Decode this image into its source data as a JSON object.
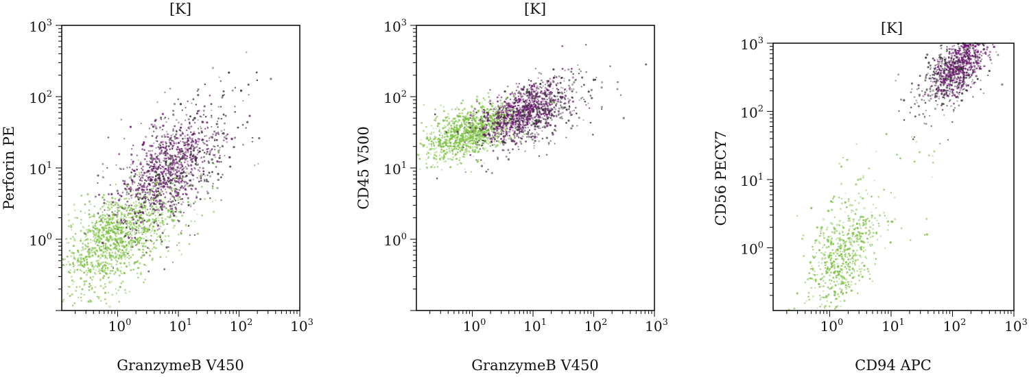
{
  "figure": {
    "panels": [
      {
        "title": "[K]",
        "xlabel": "GranzymeB V450",
        "ylabel": "Perforin PE",
        "xticks": [
          {
            "base": "10",
            "exp": "0"
          },
          {
            "base": "10",
            "exp": "1"
          },
          {
            "base": "10",
            "exp": "2"
          },
          {
            "base": "10",
            "exp": "3"
          }
        ],
        "yticks": [
          {
            "base": "10",
            "exp": "0"
          },
          {
            "base": "10",
            "exp": "1"
          },
          {
            "base": "10",
            "exp": "2"
          },
          {
            "base": "10",
            "exp": "3"
          }
        ]
      },
      {
        "title": "[K]",
        "xlabel": "GranzymeB V450",
        "ylabel": "CD45 V500",
        "xticks": [
          {
            "base": "10",
            "exp": "0"
          },
          {
            "base": "10",
            "exp": "1"
          },
          {
            "base": "10",
            "exp": "2"
          },
          {
            "base": "10",
            "exp": "3"
          }
        ],
        "yticks": [
          {
            "base": "10",
            "exp": "0"
          },
          {
            "base": "10",
            "exp": "1"
          },
          {
            "base": "10",
            "exp": "2"
          },
          {
            "base": "10",
            "exp": "3"
          }
        ]
      },
      {
        "title": "[K]",
        "xlabel": "CD94 APC",
        "ylabel": "CD56 PECY7",
        "xticks": [
          {
            "base": "10",
            "exp": "0"
          },
          {
            "base": "10",
            "exp": "1"
          },
          {
            "base": "10",
            "exp": "2"
          },
          {
            "base": "10",
            "exp": "3"
          }
        ],
        "yticks": [
          {
            "base": "10",
            "exp": "0"
          },
          {
            "base": "10",
            "exp": "1"
          },
          {
            "base": "10",
            "exp": "2"
          },
          {
            "base": "10",
            "exp": "3"
          }
        ]
      }
    ]
  },
  "chart_data": [
    {
      "type": "scatter",
      "title": "[K]",
      "xlabel": "GranzymeB V450",
      "ylabel": "Perforin PE",
      "xscale": "log",
      "yscale": "log",
      "xlim": [
        0.12,
        1000
      ],
      "ylim": [
        0.1,
        1000
      ],
      "grid": false,
      "colors": {
        "green": "#7cc142",
        "purple": "#6a1a6e",
        "dark": "#333333"
      },
      "series": [
        {
          "color": "green",
          "shape": "cloud",
          "center": [
            0.9,
            1.0
          ],
          "spread": [
            0.45,
            0.38
          ],
          "count": 1200
        },
        {
          "color": "purple",
          "shape": "cloud",
          "center": [
            6.5,
            9.0
          ],
          "spread": [
            0.38,
            0.38
          ],
          "count": 850
        },
        {
          "color": "dark",
          "shape": "cloud",
          "center": [
            10.0,
            10.0
          ],
          "spread": [
            0.55,
            0.55
          ],
          "count": 420
        },
        {
          "color": "green",
          "shape": "cloud",
          "center": [
            5.0,
            2.0
          ],
          "spread": [
            0.5,
            0.3
          ],
          "count": 100
        }
      ]
    },
    {
      "type": "scatter",
      "title": "[K]",
      "xlabel": "GranzymeB V450",
      "ylabel": "CD45 V500",
      "xscale": "log",
      "yscale": "log",
      "xlim": [
        0.12,
        1000
      ],
      "ylim": [
        0.1,
        1000
      ],
      "grid": false,
      "colors": {
        "green": "#7cc142",
        "purple": "#6a1a6e",
        "dark": "#333333"
      },
      "series": [
        {
          "color": "green",
          "shape": "cloud",
          "center": [
            0.9,
            32
          ],
          "spread": [
            0.38,
            0.2
          ],
          "count": 1100
        },
        {
          "color": "purple",
          "shape": "cloud",
          "center": [
            6.5,
            60
          ],
          "spread": [
            0.35,
            0.2
          ],
          "count": 850
        },
        {
          "color": "dark",
          "shape": "cloud",
          "center": [
            12.0,
            60
          ],
          "spread": [
            0.5,
            0.3
          ],
          "count": 400
        }
      ]
    },
    {
      "type": "scatter",
      "title": "[K]",
      "xlabel": "CD94 APC",
      "ylabel": "CD56 PECY7",
      "xscale": "log",
      "yscale": "log",
      "xlim": [
        0.12,
        1000
      ],
      "ylim": [
        0.12,
        1000
      ],
      "grid": false,
      "colors": {
        "green": "#7cc142",
        "purple": "#6a1a6e",
        "dark": "#333333"
      },
      "series": [
        {
          "color": "green",
          "shape": "cloud",
          "center": [
            1.5,
            0.7
          ],
          "spread": [
            0.3,
            0.45
          ],
          "count": 650
        },
        {
          "color": "purple",
          "shape": "cloud",
          "center": [
            130,
            480
          ],
          "spread": [
            0.22,
            0.22
          ],
          "count": 700
        },
        {
          "color": "dark",
          "shape": "cloud",
          "center": [
            80,
            300
          ],
          "spread": [
            0.32,
            0.32
          ],
          "count": 300
        },
        {
          "color": "green",
          "shape": "scatter",
          "center": [
            8,
            8
          ],
          "spread": [
            0.8,
            0.8
          ],
          "count": 40
        }
      ]
    }
  ]
}
